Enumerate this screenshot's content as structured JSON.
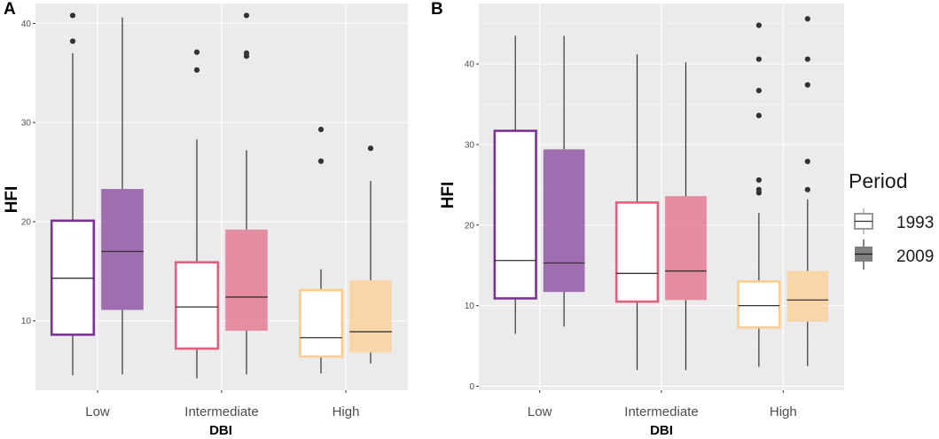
{
  "legend": {
    "title": "Period",
    "entries": [
      {
        "label": "1993",
        "style": "outline"
      },
      {
        "label": "2009",
        "style": "filled"
      }
    ]
  },
  "colors": {
    "Low": "#7b3294",
    "Intermediate": "#e0607e",
    "High": "#fdcc8a",
    "whisker": "#333333",
    "point": "#333333",
    "legend_outline": "#999999",
    "legend_fill": "#7f7f7f"
  },
  "chart_data": [
    {
      "type": "boxplot",
      "panel_label": "A",
      "xlabel": "DBI",
      "ylabel": "HFI",
      "categories": [
        "Low",
        "Intermediate",
        "High"
      ],
      "series": [
        "1993",
        "2009"
      ],
      "ylim": [
        3,
        42
      ],
      "yticks": [
        10,
        20,
        30,
        40
      ],
      "tick_labels": [
        "10",
        "20",
        "30",
        "40"
      ],
      "boxes": [
        {
          "category": "Low",
          "period": "1993",
          "min": 4.5,
          "q1": 8.6,
          "median": 14.3,
          "q3": 20.1,
          "max": 37.0,
          "outliers": [
            38.2,
            40.8
          ]
        },
        {
          "category": "Low",
          "period": "2009",
          "min": 4.6,
          "q1": 11.1,
          "median": 17.0,
          "q3": 23.3,
          "max": 40.6,
          "outliers": []
        },
        {
          "category": "Intermediate",
          "period": "1993",
          "min": 4.2,
          "q1": 7.2,
          "median": 11.4,
          "q3": 15.9,
          "max": 28.3,
          "outliers": [
            35.3,
            37.1
          ]
        },
        {
          "category": "Intermediate",
          "period": "2009",
          "min": 4.6,
          "q1": 9.0,
          "median": 12.4,
          "q3": 19.2,
          "max": 27.2,
          "outliers": [
            36.7,
            37.0,
            40.8
          ]
        },
        {
          "category": "High",
          "period": "1993",
          "min": 4.7,
          "q1": 6.4,
          "median": 8.3,
          "q3": 13.1,
          "max": 15.2,
          "outliers": [
            26.1,
            29.3
          ]
        },
        {
          "category": "High",
          "period": "2009",
          "min": 5.7,
          "q1": 6.8,
          "median": 8.9,
          "q3": 14.1,
          "max": 24.1,
          "outliers": [
            27.4
          ]
        }
      ]
    },
    {
      "type": "boxplot",
      "panel_label": "B",
      "xlabel": "DBI",
      "ylabel": "HFI",
      "categories": [
        "Low",
        "Intermediate",
        "High"
      ],
      "series": [
        "1993",
        "2009"
      ],
      "ylim": [
        -0.5,
        47.5
      ],
      "yticks": [
        0,
        10,
        20,
        30,
        40
      ],
      "tick_labels": [
        "0",
        "10",
        "20",
        "30",
        "40"
      ],
      "boxes": [
        {
          "category": "Low",
          "period": "1993",
          "min": 6.5,
          "q1": 10.9,
          "median": 15.6,
          "q3": 31.7,
          "max": 43.5,
          "outliers": []
        },
        {
          "category": "Low",
          "period": "2009",
          "min": 7.4,
          "q1": 11.7,
          "median": 15.3,
          "q3": 29.4,
          "max": 43.5,
          "outliers": []
        },
        {
          "category": "Intermediate",
          "period": "1993",
          "min": 2.0,
          "q1": 10.5,
          "median": 14.0,
          "q3": 22.8,
          "max": 41.2,
          "outliers": []
        },
        {
          "category": "Intermediate",
          "period": "2009",
          "min": 2.0,
          "q1": 10.7,
          "median": 14.3,
          "q3": 23.6,
          "max": 40.2,
          "outliers": []
        },
        {
          "category": "High",
          "period": "1993",
          "min": 2.4,
          "q1": 7.3,
          "median": 10.0,
          "q3": 13.0,
          "max": 21.5,
          "outliers": [
            24.0,
            24.4,
            25.6,
            33.6,
            36.7,
            40.6,
            44.8
          ]
        },
        {
          "category": "High",
          "period": "2009",
          "min": 2.5,
          "q1": 8.0,
          "median": 10.7,
          "q3": 14.3,
          "max": 23.2,
          "outliers": [
            24.4,
            27.9,
            37.4,
            40.6,
            45.6
          ]
        }
      ]
    }
  ]
}
